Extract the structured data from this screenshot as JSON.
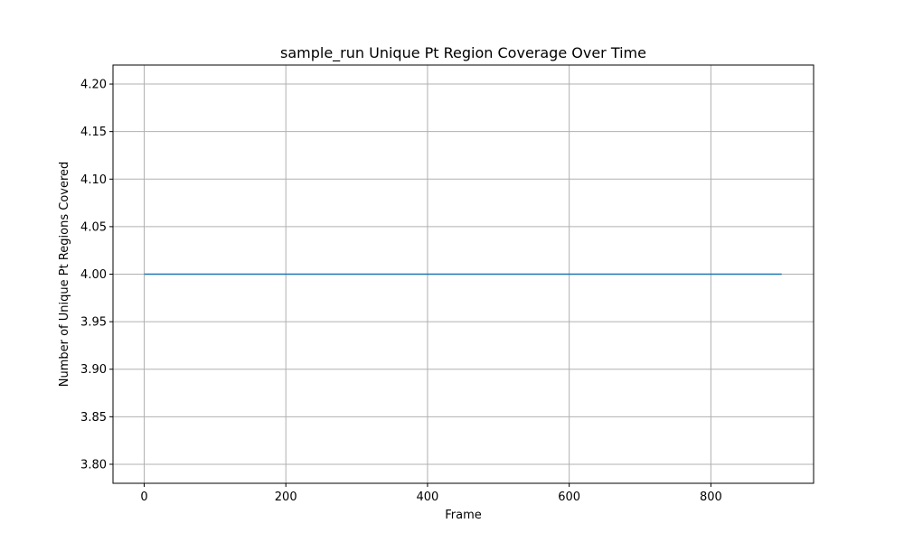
{
  "chart_data": {
    "type": "line",
    "title": "sample_run Unique Pt Region Coverage Over Time",
    "xlabel": "Frame",
    "ylabel": "Number of Unique Pt Regions Covered",
    "xlim": [
      -44,
      945
    ],
    "ylim": [
      3.78,
      4.22
    ],
    "grid": true,
    "legend": "none",
    "x_ticks": [
      0,
      200,
      400,
      600,
      800
    ],
    "y_ticks": [
      3.8,
      3.85,
      3.9,
      3.95,
      4.0,
      4.05,
      4.1,
      4.15,
      4.2
    ],
    "y_tick_labels": [
      "3.80",
      "3.85",
      "3.90",
      "3.95",
      "4.00",
      "4.05",
      "4.10",
      "4.15",
      "4.20"
    ],
    "series": [
      {
        "color": "#1f77b4",
        "x": [
          0,
          100,
          200,
          300,
          400,
          500,
          600,
          700,
          800,
          900
        ],
        "y": [
          4.0,
          4.0,
          4.0,
          4.0,
          4.0,
          4.0,
          4.0,
          4.0,
          4.0,
          4.0
        ]
      }
    ]
  }
}
